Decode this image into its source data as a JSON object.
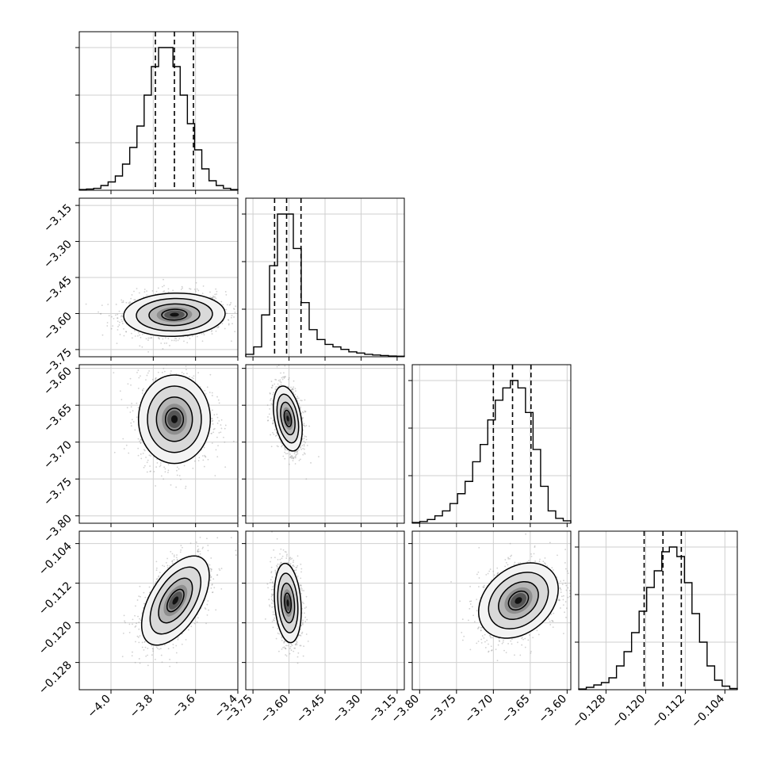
{
  "chart_data": {
    "type": "corner",
    "title": "",
    "grid": true,
    "parameters": [
      {
        "xlim": [
          -4.15,
          -3.4
        ],
        "xticks": [
          -4.0,
          -3.8,
          -3.6,
          -3.4
        ],
        "xtick_labels": [
          "−4.0",
          "−3.8",
          "−3.6",
          "−3.4"
        ]
      },
      {
        "xlim": [
          -3.78,
          -3.12
        ],
        "xticks": [
          -3.75,
          -3.6,
          -3.45,
          -3.3,
          -3.15
        ],
        "xtick_labels": [
          "−3.75",
          "−3.60",
          "−3.45",
          "−3.30",
          "−3.15"
        ]
      },
      {
        "xlim": [
          -3.81,
          -3.595
        ],
        "xticks": [
          -3.8,
          -3.75,
          -3.7,
          -3.65,
          -3.6
        ],
        "xtick_labels": [
          "−3.80",
          "−3.75",
          "−3.70",
          "−3.65",
          "−3.60"
        ]
      },
      {
        "xlim": [
          -0.1335,
          -0.1015
        ],
        "xticks": [
          -0.128,
          -0.12,
          -0.112,
          -0.104
        ],
        "xtick_labels": [
          "−0.128",
          "−0.120",
          "−0.112",
          "−0.104"
        ]
      }
    ],
    "row_labels": [
      null,
      {
        "ylim": [
          -3.78,
          -3.12
        ],
        "yticks": [
          -3.75,
          -3.6,
          -3.45,
          -3.3,
          -3.15
        ],
        "ytick_labels": [
          "−3.75",
          "−3.60",
          "−3.45",
          "−3.30",
          "−3.15"
        ]
      },
      {
        "ylim": [
          -3.81,
          -3.595
        ],
        "yticks": [
          -3.8,
          -3.75,
          -3.7,
          -3.65,
          -3.6
        ],
        "ytick_labels": [
          "−3.80",
          "−3.75",
          "−3.70",
          "−3.65",
          "−3.60"
        ]
      },
      {
        "ylim": [
          -0.1335,
          -0.1015
        ],
        "yticks": [
          -0.128,
          -0.12,
          -0.112,
          -0.104
        ],
        "ytick_labels": [
          "−0.128",
          "−0.120",
          "−0.112",
          "−0.104"
        ]
      }
    ],
    "histograms": [
      {
        "param": 0,
        "bin_edges_range": [
          -4.15,
          -3.4
        ],
        "counts": [
          0.3,
          0.5,
          0.8,
          2,
          3.5,
          6,
          11,
          18,
          27,
          40,
          52,
          60,
          60,
          52,
          40,
          28,
          17,
          9,
          4,
          2,
          0.8,
          0.3
        ],
        "quantiles": [
          -3.79,
          -3.7,
          -3.61
        ]
      },
      {
        "param": 1,
        "bin_edges_range": [
          -3.78,
          -3.12
        ],
        "counts": [
          1,
          4,
          17,
          37,
          58,
          58,
          44,
          22,
          11,
          7,
          5,
          4,
          3,
          2,
          1.5,
          1,
          0.7,
          0.5,
          0.3,
          0.2
        ],
        "quantiles": [
          -3.66,
          -3.61,
          -3.55
        ]
      },
      {
        "param": 2,
        "bin_edges_range": [
          -3.81,
          -3.595
        ],
        "counts": [
          0.3,
          0.7,
          1.5,
          3,
          5,
          8,
          12,
          17,
          25,
          32,
          42,
          50,
          55,
          58,
          55,
          45,
          30,
          15,
          5,
          2,
          1
        ],
        "quantiles": [
          -3.7,
          -3.674,
          -3.649
        ]
      },
      {
        "param": 3,
        "bin_edges_range": [
          -0.1335,
          -0.1015
        ],
        "counts": [
          0.3,
          1,
          2,
          3,
          5,
          10,
          16,
          24,
          33,
          43,
          50,
          58,
          60,
          56,
          45,
          32,
          20,
          10,
          4,
          1.5,
          0.5
        ],
        "quantiles": [
          -0.1203,
          -0.1165,
          -0.1128
        ]
      }
    ],
    "pairs": [
      {
        "x": 0,
        "y": 1,
        "center": [
          -3.7,
          -3.605
        ],
        "spread": [
          0.12,
          0.045
        ],
        "rho": 0.05
      },
      {
        "x": 0,
        "y": 2,
        "center": [
          -3.7,
          -3.669
        ],
        "spread": [
          0.085,
          0.03
        ],
        "rho": 0.0
      },
      {
        "x": 1,
        "y": 2,
        "center": [
          -3.605,
          -3.668
        ],
        "spread": [
          0.03,
          0.022
        ],
        "rho": -0.35
      },
      {
        "x": 0,
        "y": 3,
        "center": [
          -3.695,
          -0.1155
        ],
        "spread": [
          0.08,
          0.0045
        ],
        "rho": 0.55
      },
      {
        "x": 1,
        "y": 3,
        "center": [
          -3.605,
          -0.116
        ],
        "spread": [
          0.028,
          0.004
        ],
        "rho": -0.2
      },
      {
        "x": 2,
        "y": 3,
        "center": [
          -3.666,
          -0.1155
        ],
        "spread": [
          0.027,
          0.0038
        ],
        "rho": 0.3
      }
    ],
    "contour_levels": [
      0.5,
      1.0,
      1.5,
      2.0
    ]
  }
}
